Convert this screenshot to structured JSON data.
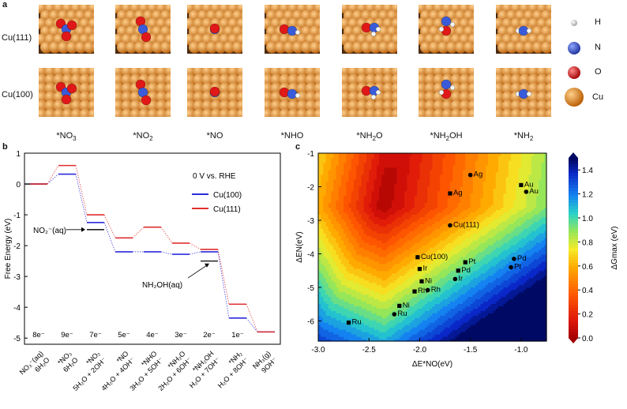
{
  "panel_a": {
    "label": "a",
    "rows": [
      {
        "name": "Cu(111)",
        "pattern": "hex"
      },
      {
        "name": "Cu(100)",
        "pattern": "square"
      }
    ],
    "species": [
      "*NO3",
      "*NO2",
      "*NO",
      "*NHO",
      "*NH2O",
      "*NH2OH",
      "*NH2"
    ],
    "species_display": [
      {
        "base": "*NO",
        "sub": "3",
        "tail": ""
      },
      {
        "base": "*NO",
        "sub": "2",
        "tail": ""
      },
      {
        "base": "*NO",
        "sub": "",
        "tail": ""
      },
      {
        "base": "*NHO",
        "sub": "",
        "tail": ""
      },
      {
        "base": "*NH",
        "sub": "2",
        "tail": "O"
      },
      {
        "base": "*NH",
        "sub": "2",
        "tail": "OH"
      },
      {
        "base": "*NH",
        "sub": "2",
        "tail": ""
      }
    ],
    "legend": [
      {
        "label": "H",
        "color": "#ffffff"
      },
      {
        "label": "N",
        "color": "#3a5bd9"
      },
      {
        "label": "O",
        "color": "#e01818"
      },
      {
        "label": "Cu",
        "color": "#e8891c"
      }
    ]
  },
  "panel_b": {
    "label": "b",
    "chart_data": {
      "type": "line",
      "ylabel": "Free Energy (eV)",
      "ylim": [
        -5.2,
        1.0
      ],
      "yticks": [
        1,
        0,
        -1,
        -2,
        -3,
        -4,
        -5
      ],
      "legend_title": "0 V vs. RHE",
      "series": [
        {
          "name": "Cu(100)",
          "color": "#2b2bdb",
          "values": [
            0,
            0.32,
            -1.25,
            -2.2,
            -2.2,
            -2.28,
            -2.2,
            -4.35,
            -4.8
          ]
        },
        {
          "name": "Cu(111)",
          "color": "#e03030",
          "values": [
            0,
            0.6,
            -1.0,
            -1.75,
            -1.4,
            -1.92,
            -2.12,
            -3.9,
            -4.8
          ]
        }
      ],
      "states": [
        {
          "top": "8e⁻",
          "bottom": [
            "NO₃⁻(aq)",
            "6H₂O"
          ]
        },
        {
          "top": "9e⁻",
          "bottom": [
            "*NO₃",
            "6H₂O"
          ]
        },
        {
          "top": "7e⁻",
          "bottom": [
            "*NO₂",
            "5H₂O + 2OH⁻"
          ]
        },
        {
          "top": "5e⁻",
          "bottom": [
            "*NO",
            "4H₂O + 4OH⁻"
          ]
        },
        {
          "top": "4e⁻",
          "bottom": [
            "*NHO",
            "3H₂O + 5OH⁻"
          ]
        },
        {
          "top": "3e⁻",
          "bottom": [
            "*NH₂O",
            "2H₂O + 6OH⁻"
          ]
        },
        {
          "top": "2e⁻",
          "bottom": [
            "*NH₂OH",
            "H₂O + 7OH⁻"
          ]
        },
        {
          "top": "1e⁻",
          "bottom": [
            "*NH₂",
            "H₂O + 8OH⁻"
          ]
        },
        {
          "top": "",
          "bottom": [
            "NH₃(g)",
            "9OH⁻"
          ]
        }
      ],
      "reference_levels": [
        {
          "label": "NO₂⁻(aq)",
          "state_index": 2,
          "value": -1.48
        },
        {
          "label": "NH₂OH(aq)",
          "state_index": 6,
          "value": -2.5
        }
      ],
      "annotations": [
        "NO₂⁻(aq)",
        "NH₂OH(aq)"
      ]
    }
  },
  "panel_c": {
    "label": "c",
    "chart_data": {
      "type": "heatmap",
      "xlabel": "ΔE*NO(eV)",
      "ylabel": "ΔEN(eV)",
      "xlim": [
        -3.0,
        -0.75
      ],
      "ylim": [
        -6.6,
        -1.0
      ],
      "xticks": [
        -3.0,
        -2.5,
        -2.0,
        -1.5,
        -1.0
      ],
      "yticks": [
        -1,
        -2,
        -3,
        -4,
        -5,
        -6
      ],
      "colorbar": {
        "label": "ΔGmax (eV)",
        "min": 0.0,
        "max": 1.5,
        "ticks": [
          0.0,
          0.2,
          0.4,
          0.6,
          0.8,
          1.0,
          1.2,
          1.4
        ]
      },
      "points": [
        {
          "label": "Ag",
          "x": -1.5,
          "y": -1.65,
          "marker": "circle"
        },
        {
          "label": "Ag",
          "x": -1.7,
          "y": -2.2,
          "marker": "square"
        },
        {
          "label": "Au",
          "x": -1.0,
          "y": -1.95,
          "marker": "square"
        },
        {
          "label": "Au",
          "x": -0.95,
          "y": -2.15,
          "marker": "circle"
        },
        {
          "label": "Cu(111)",
          "x": -1.7,
          "y": -3.15,
          "marker": "circle"
        },
        {
          "label": "Cu(100)",
          "x": -2.02,
          "y": -4.1,
          "marker": "square"
        },
        {
          "label": "Pt",
          "x": -1.55,
          "y": -4.25,
          "marker": "square"
        },
        {
          "label": "Pd",
          "x": -1.07,
          "y": -4.15,
          "marker": "circle"
        },
        {
          "label": "Pt",
          "x": -1.1,
          "y": -4.4,
          "marker": "circle"
        },
        {
          "label": "Ir",
          "x": -2.0,
          "y": -4.45,
          "marker": "square"
        },
        {
          "label": "Pd",
          "x": -1.62,
          "y": -4.5,
          "marker": "square"
        },
        {
          "label": "Ni",
          "x": -1.98,
          "y": -4.82,
          "marker": "square"
        },
        {
          "label": "Ir",
          "x": -1.65,
          "y": -4.75,
          "marker": "circle"
        },
        {
          "label": "Rh",
          "x": -1.92,
          "y": -5.08,
          "marker": "circle"
        },
        {
          "label": "Rh",
          "x": -2.05,
          "y": -5.12,
          "marker": "square"
        },
        {
          "label": "Ni",
          "x": -2.2,
          "y": -5.55,
          "marker": "square"
        },
        {
          "label": "Ru",
          "x": -2.25,
          "y": -5.8,
          "marker": "circle"
        },
        {
          "label": "Ru",
          "x": -2.7,
          "y": -6.05,
          "marker": "square"
        }
      ]
    }
  }
}
